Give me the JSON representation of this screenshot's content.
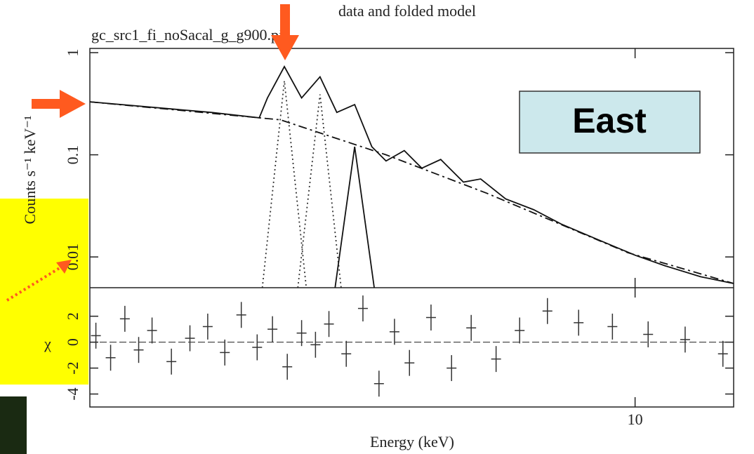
{
  "chart_data": [
    {
      "type": "line",
      "title": "data and folded model",
      "subtitle": "gc_src1_fi_noSacal_g_g900.pi",
      "y_label": "Counts s⁻¹ keV⁻¹",
      "log_x": true,
      "log_y": true,
      "xlim": [
        2.91,
        12.5
      ],
      "ylim": [
        0.005,
        1.1
      ],
      "yticks": [
        1,
        0.1,
        0.01
      ],
      "series": [
        {
          "style": "solid",
          "color": "#111",
          "x": [
            2.91,
            3.83,
            4.27,
            4.35,
            4.52,
            4.7,
            4.9,
            5.09,
            5.3,
            5.51,
            5.69,
            5.93,
            6.17,
            6.44,
            6.78,
            7.05,
            7.46,
            7.95,
            8.46,
            9.16,
            10.0,
            10.7,
            11.6,
            12.5
          ],
          "values": [
            0.33,
            0.26,
            0.23,
            0.36,
            0.73,
            0.36,
            0.58,
            0.26,
            0.31,
            0.12,
            0.087,
            0.11,
            0.074,
            0.09,
            0.054,
            0.058,
            0.037,
            0.029,
            0.021,
            0.015,
            0.0104,
            0.0082,
            0.0064,
            0.0055
          ]
        },
        {
          "style": "dashed",
          "color": "#111",
          "x": [
            2.91,
            4.48,
            5.69,
            7.15,
            9.84,
            12.5
          ],
          "values": [
            0.33,
            0.22,
            0.1,
            0.042,
            0.011,
            0.0055
          ]
        },
        {
          "style": "dotted",
          "color": "#333",
          "x": [
            4.3,
            4.52,
            4.75
          ],
          "values": [
            0.005,
            0.53,
            0.005
          ]
        },
        {
          "style": "dotted",
          "color": "#333",
          "x": [
            4.66,
            4.9,
            5.14
          ],
          "values": [
            0.005,
            0.39,
            0.005
          ]
        },
        {
          "style": "solid",
          "color": "#111",
          "x": [
            5.07,
            5.3,
            5.54
          ],
          "values": [
            0.005,
            0.12,
            0.005
          ]
        }
      ]
    },
    {
      "type": "scatter",
      "y_label": "χ",
      "x_label": "Energy (keV)",
      "log_x": true,
      "xlim": [
        2.91,
        12.5
      ],
      "ylim": [
        -5,
        4.2
      ],
      "xticks": [
        10
      ],
      "yticks": [
        -4,
        -2,
        0,
        2
      ],
      "color": "#333",
      "x": [
        2.95,
        3.05,
        3.15,
        3.25,
        3.35,
        3.5,
        3.65,
        3.8,
        3.95,
        4.1,
        4.25,
        4.4,
        4.55,
        4.7,
        4.85,
        5.0,
        5.2,
        5.4,
        5.6,
        5.8,
        6.0,
        6.3,
        6.6,
        6.9,
        7.3,
        7.7,
        8.2,
        8.8,
        9.5,
        10.3,
        11.2,
        12.2
      ],
      "values": [
        0.5,
        -1.2,
        1.8,
        -0.6,
        0.9,
        -1.5,
        0.3,
        1.2,
        -0.8,
        2.1,
        -0.4,
        1.0,
        -1.9,
        0.7,
        -0.2,
        1.4,
        -0.9,
        2.6,
        -3.2,
        0.8,
        -1.6,
        1.9,
        -2.0,
        1.1,
        -1.3,
        0.9,
        2.4,
        1.5,
        1.2,
        0.6,
        0.2,
        -0.9
      ],
      "errors": [
        1,
        1,
        1,
        1,
        1,
        1,
        1,
        1,
        1,
        1,
        1,
        1,
        1,
        1,
        1,
        1,
        1,
        1,
        1,
        1,
        1,
        1,
        1,
        1,
        1,
        1,
        1,
        1,
        1,
        1,
        1,
        1
      ]
    }
  ],
  "overlay": {
    "box_label": "East"
  }
}
